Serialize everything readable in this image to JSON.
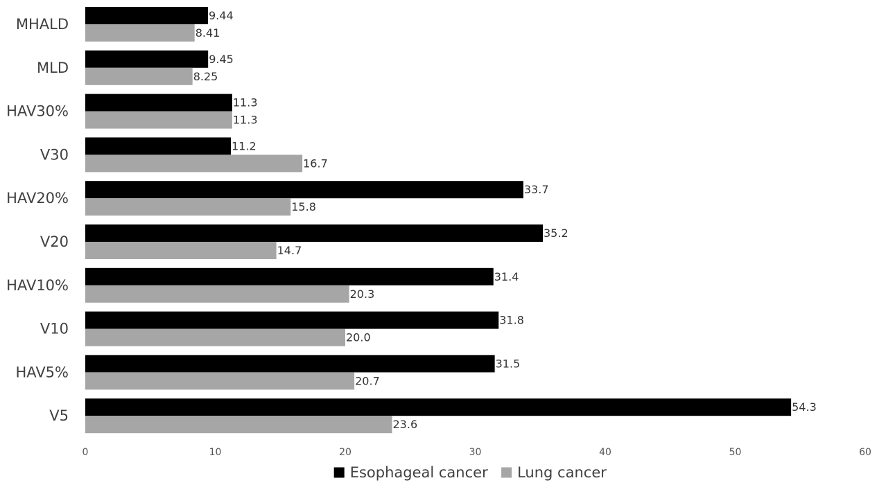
{
  "chart_data": {
    "type": "bar",
    "orientation": "horizontal",
    "categories": [
      "MHALD",
      "MLD",
      "HAV30%",
      "V30",
      "HAV20%",
      "V20",
      "HAV10%",
      "V10",
      "HAV5%",
      "V5"
    ],
    "series": [
      {
        "name": "Esophageal cancer",
        "color": "#000000",
        "values": [
          9.44,
          9.45,
          11.3,
          11.2,
          33.7,
          35.2,
          31.4,
          31.8,
          31.5,
          54.3
        ],
        "labels": [
          "9.44",
          "9.45",
          "11.3",
          "11.2",
          "33.7",
          "35.2",
          "31.4",
          "31.8",
          "31.5",
          "54.3"
        ]
      },
      {
        "name": "Lung cancer",
        "color": "#a6a6a6",
        "values": [
          8.41,
          8.25,
          11.3,
          16.7,
          15.8,
          14.7,
          20.3,
          20.0,
          20.7,
          23.6
        ],
        "labels": [
          "8.41",
          "8.25",
          "11.3",
          "16.7",
          "15.8",
          "14.7",
          "20.3",
          "20.0",
          "20.7",
          "23.6"
        ]
      }
    ],
    "xlim": [
      0,
      60
    ],
    "xticks": [
      "0",
      "10",
      "20",
      "30",
      "40",
      "50",
      "60"
    ],
    "title": "",
    "xlabel": "",
    "ylabel": "",
    "grid": false,
    "legend_position": "bottom"
  }
}
